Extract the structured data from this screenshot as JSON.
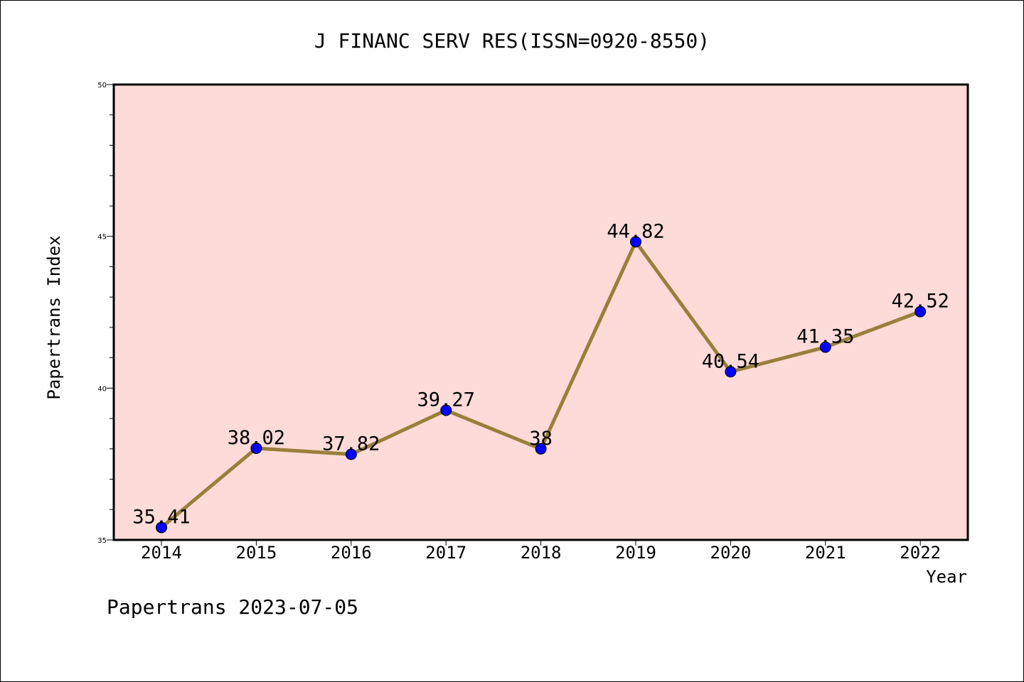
{
  "chart_data": {
    "type": "line",
    "title": "J FINANC SERV RES(ISSN=0920-8550)",
    "xlabel": "Year",
    "ylabel": "Papertrans Index",
    "footer": "Papertrans 2023-07-05",
    "categories": [
      "2014",
      "2015",
      "2016",
      "2017",
      "2018",
      "2019",
      "2020",
      "2021",
      "2022"
    ],
    "values": [
      35.41,
      38.02,
      37.82,
      39.27,
      38,
      44.82,
      40.54,
      41.35,
      42.52
    ],
    "value_labels": [
      "35.41",
      "38.02",
      "37.82",
      "39.27",
      "38",
      "44.82",
      "40.54",
      "41.35",
      "42.52"
    ],
    "ylim": [
      35,
      50
    ],
    "yticks": [
      "35",
      "40",
      "45",
      "50"
    ],
    "grid": false,
    "colors": {
      "plot_background": "#fddbd8",
      "line": "#9a7f3a",
      "marker": "#0000ff"
    }
  }
}
